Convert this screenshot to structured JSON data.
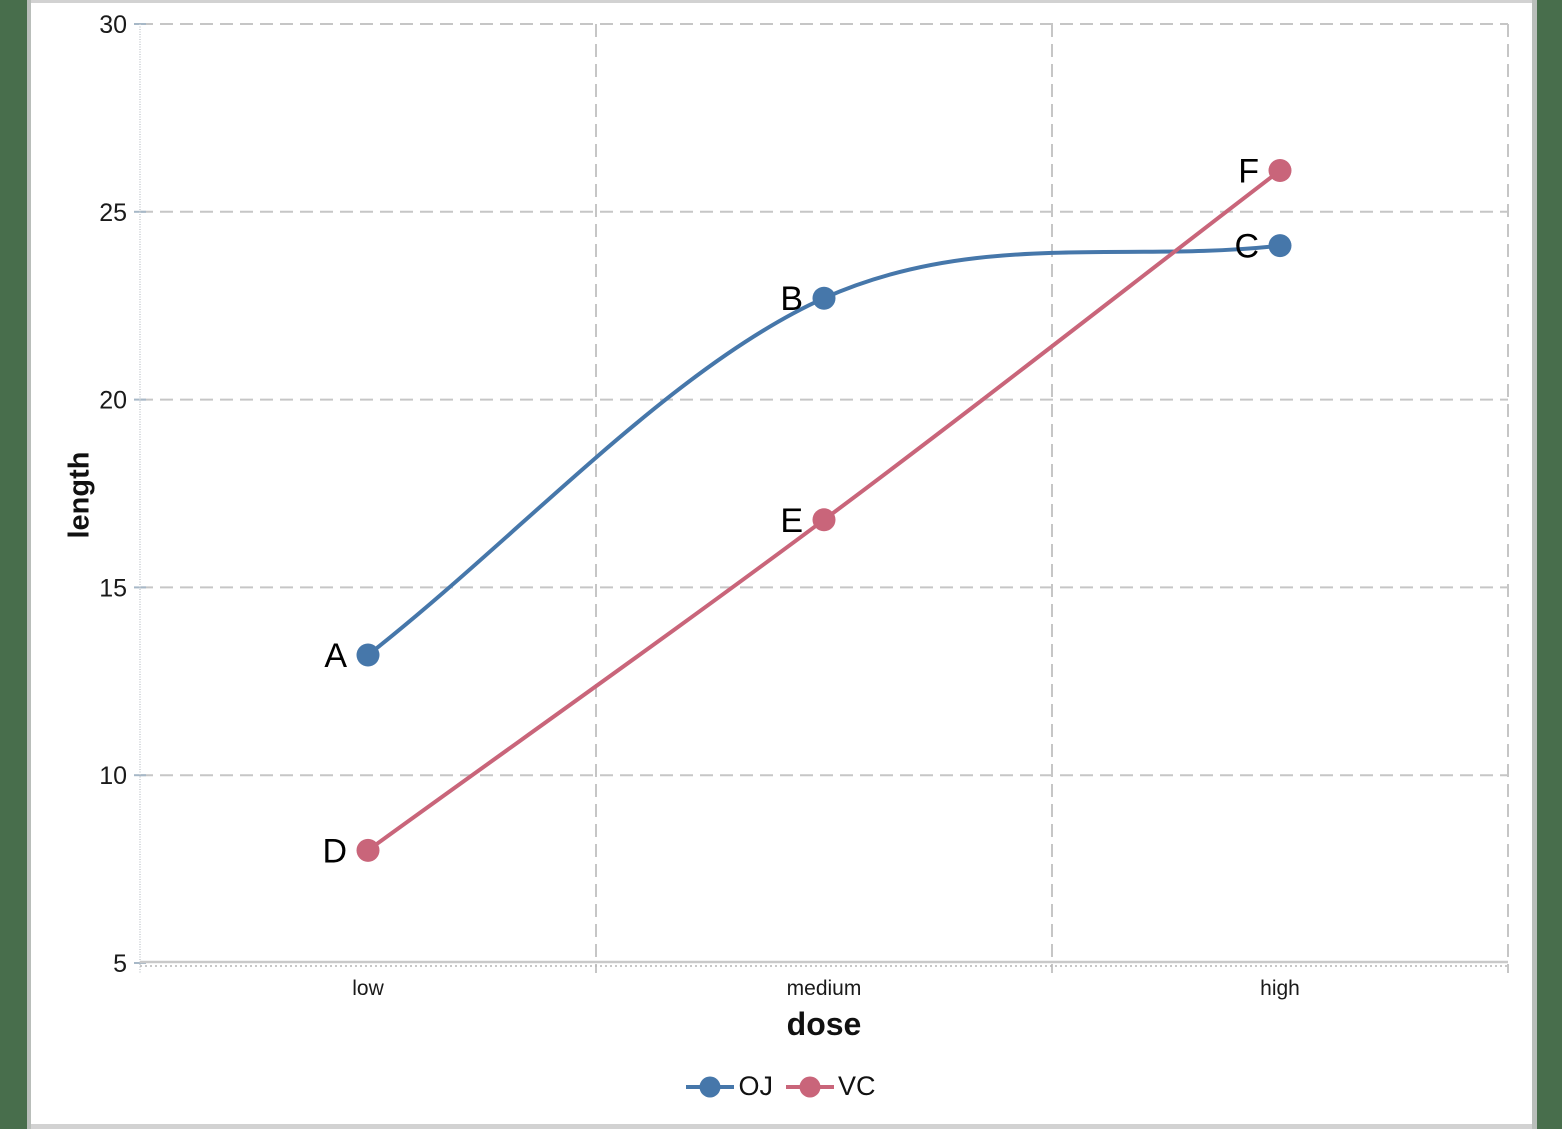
{
  "window": {
    "side_margin_color": "#486E4C",
    "edge_bar_color": "#d2d2d2",
    "background_color": "#ffffff"
  },
  "chart_data": {
    "type": "line",
    "title": "",
    "xlabel": "dose",
    "ylabel": "length",
    "categories": [
      "low",
      "medium",
      "high"
    ],
    "y_ticks": [
      5,
      10,
      15,
      20,
      25,
      30
    ],
    "ylim": [
      5,
      30
    ],
    "grid": "dashed gray horizontal lines at each y tick and vertical lines at category boundaries",
    "grid_color": "#c6c6c6",
    "legend_position": "bottom-center",
    "series": [
      {
        "name": "OJ",
        "color": "#4677AA",
        "line_style": "smooth",
        "marker": "filled-circle",
        "values": [
          13.2,
          22.7,
          24.1
        ],
        "point_labels": [
          "A",
          "B",
          "C"
        ]
      },
      {
        "name": "VC",
        "color": "#C9657A",
        "line_style": "smooth",
        "marker": "filled-circle",
        "values": [
          8.0,
          16.8,
          26.1
        ],
        "point_labels": [
          "D",
          "E",
          "F"
        ]
      }
    ]
  }
}
